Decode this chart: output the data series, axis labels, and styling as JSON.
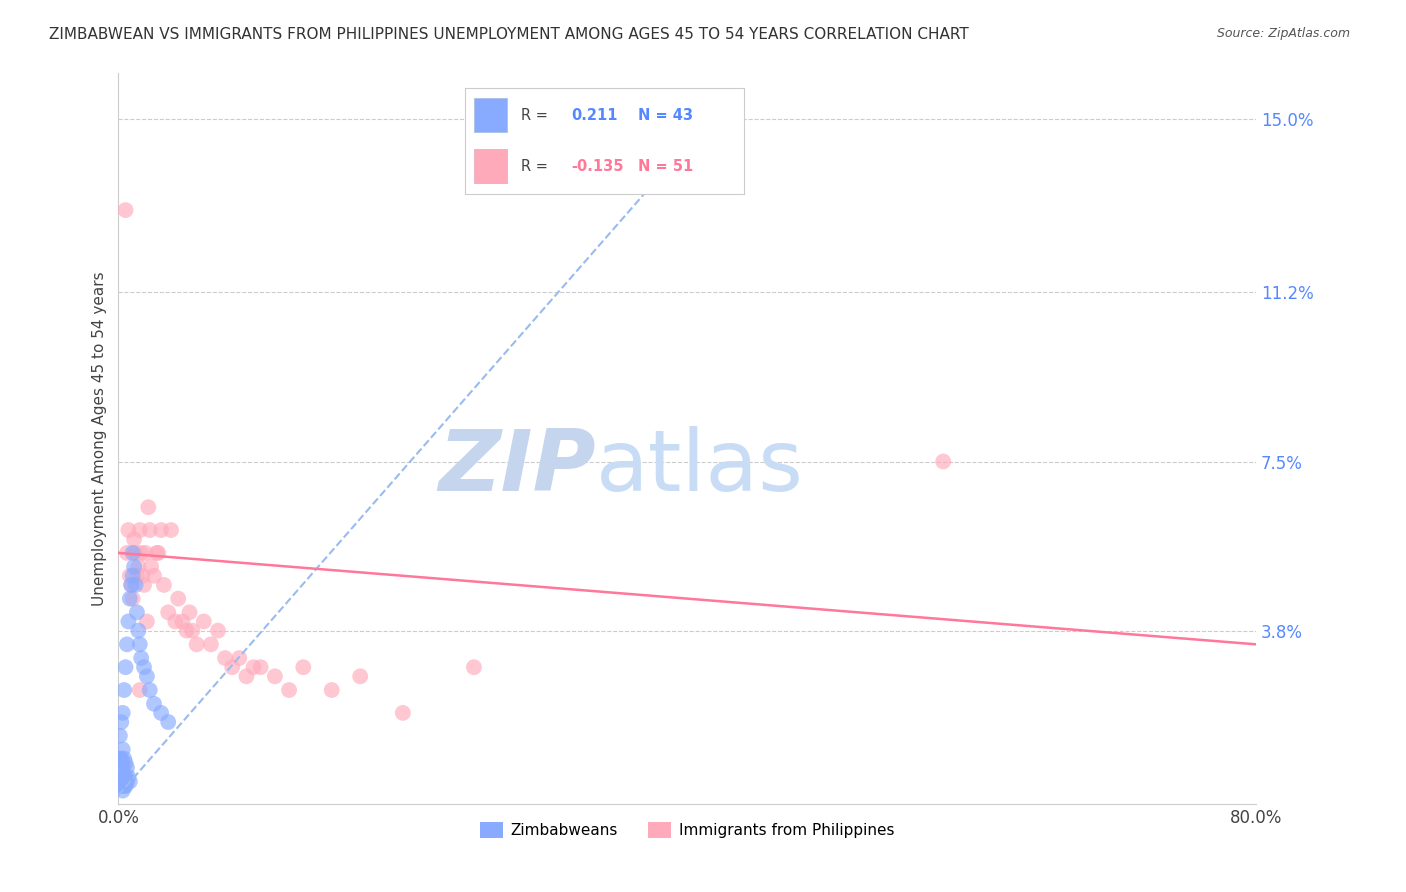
{
  "title": "ZIMBABWEAN VS IMMIGRANTS FROM PHILIPPINES UNEMPLOYMENT AMONG AGES 45 TO 54 YEARS CORRELATION CHART",
  "source": "Source: ZipAtlas.com",
  "ylabel": "Unemployment Among Ages 45 to 54 years",
  "xlim": [
    0.0,
    0.8
  ],
  "ylim": [
    0.0,
    0.16
  ],
  "ytick_labels": [
    "15.0%",
    "11.2%",
    "7.5%",
    "3.8%"
  ],
  "ytick_positions": [
    0.15,
    0.112,
    0.075,
    0.038
  ],
  "grid_color": "#cccccc",
  "background_color": "#ffffff",
  "legend_label1": "Zimbabweans",
  "legend_label2": "Immigrants from Philippines",
  "color_blue": "#88aaff",
  "color_pink": "#ffaabb",
  "trend_blue": "#99bbee",
  "trend_pink": "#ff7799",
  "watermark_zip": "ZIP",
  "watermark_atlas": "atlas",
  "watermark_color_zip": "#c8d8f0",
  "watermark_color_atlas": "#c8d8f0",
  "title_fontsize": 11,
  "axis_label_fontsize": 11,
  "tick_fontsize": 12,
  "zimbabwe_x": [
    0.001,
    0.001,
    0.001,
    0.001,
    0.002,
    0.002,
    0.002,
    0.002,
    0.003,
    0.003,
    0.003,
    0.003,
    0.003,
    0.004,
    0.004,
    0.004,
    0.004,
    0.005,
    0.005,
    0.005,
    0.005,
    0.006,
    0.006,
    0.006,
    0.007,
    0.007,
    0.008,
    0.008,
    0.009,
    0.01,
    0.01,
    0.011,
    0.012,
    0.013,
    0.014,
    0.015,
    0.016,
    0.018,
    0.02,
    0.022,
    0.025,
    0.03,
    0.035
  ],
  "zimbabwe_y": [
    0.005,
    0.008,
    0.01,
    0.015,
    0.004,
    0.006,
    0.01,
    0.018,
    0.003,
    0.005,
    0.008,
    0.012,
    0.02,
    0.004,
    0.006,
    0.01,
    0.025,
    0.004,
    0.006,
    0.009,
    0.03,
    0.005,
    0.008,
    0.035,
    0.006,
    0.04,
    0.005,
    0.045,
    0.048,
    0.05,
    0.055,
    0.052,
    0.048,
    0.042,
    0.038,
    0.035,
    0.032,
    0.03,
    0.028,
    0.025,
    0.022,
    0.02,
    0.018
  ],
  "philippines_x": [
    0.005,
    0.006,
    0.007,
    0.008,
    0.009,
    0.01,
    0.011,
    0.012,
    0.013,
    0.014,
    0.015,
    0.016,
    0.017,
    0.018,
    0.019,
    0.02,
    0.021,
    0.022,
    0.023,
    0.025,
    0.027,
    0.028,
    0.03,
    0.032,
    0.035,
    0.037,
    0.04,
    0.042,
    0.045,
    0.048,
    0.05,
    0.052,
    0.055,
    0.06,
    0.065,
    0.07,
    0.075,
    0.08,
    0.085,
    0.09,
    0.095,
    0.1,
    0.11,
    0.12,
    0.13,
    0.15,
    0.17,
    0.2,
    0.25,
    0.58,
    0.015
  ],
  "philippines_y": [
    0.13,
    0.055,
    0.06,
    0.05,
    0.048,
    0.045,
    0.058,
    0.055,
    0.05,
    0.052,
    0.06,
    0.055,
    0.05,
    0.048,
    0.055,
    0.04,
    0.065,
    0.06,
    0.052,
    0.05,
    0.055,
    0.055,
    0.06,
    0.048,
    0.042,
    0.06,
    0.04,
    0.045,
    0.04,
    0.038,
    0.042,
    0.038,
    0.035,
    0.04,
    0.035,
    0.038,
    0.032,
    0.03,
    0.032,
    0.028,
    0.03,
    0.03,
    0.028,
    0.025,
    0.03,
    0.025,
    0.028,
    0.02,
    0.03,
    0.075,
    0.025
  ],
  "blue_trend_x0": 0.0,
  "blue_trend_x1": 0.43,
  "blue_trend_y0": 0.002,
  "blue_trend_y1": 0.155,
  "pink_trend_x0": 0.0,
  "pink_trend_x1": 0.8,
  "pink_trend_y0": 0.055,
  "pink_trend_y1": 0.035
}
